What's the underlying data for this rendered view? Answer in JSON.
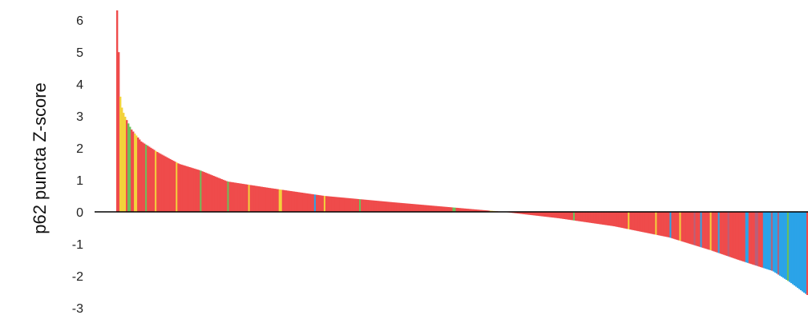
{
  "chart_data": {
    "type": "bar",
    "title": "",
    "xlabel": "",
    "ylabel": "p62 puncta  Z-score",
    "ylim": [
      -3.3,
      6.3
    ],
    "yticks": [
      "6",
      "5",
      "4",
      "3",
      "2",
      "1",
      "0",
      "-1",
      "-2",
      "-3"
    ],
    "x_axis": "unlabeled, bars sorted by descending Z-score",
    "bar_count": 430,
    "grid": false,
    "legend": "none",
    "colors": {
      "default": "#ef4b4b",
      "yellow": "#f3d23b",
      "green": "#6cc05a",
      "blue": "#2ba3e8",
      "mauve": "#b8607a",
      "axis": "#000000"
    },
    "profile": [
      {
        "rank": 0.0,
        "value": 6.3
      },
      {
        "rank": 0.0025,
        "value": 4.9
      },
      {
        "rank": 0.005,
        "value": 3.4
      },
      {
        "rank": 0.01,
        "value": 3.05
      },
      {
        "rank": 0.02,
        "value": 2.6
      },
      {
        "rank": 0.035,
        "value": 2.2
      },
      {
        "rank": 0.06,
        "value": 1.85
      },
      {
        "rank": 0.09,
        "value": 1.5
      },
      {
        "rank": 0.12,
        "value": 1.3
      },
      {
        "rank": 0.16,
        "value": 0.95
      },
      {
        "rank": 0.22,
        "value": 0.75
      },
      {
        "rank": 0.3,
        "value": 0.5
      },
      {
        "rank": 0.4,
        "value": 0.3
      },
      {
        "rank": 0.48,
        "value": 0.15
      },
      {
        "rank": 0.56,
        "value": 0.0
      },
      {
        "rank": 0.64,
        "value": -0.2
      },
      {
        "rank": 0.72,
        "value": -0.45
      },
      {
        "rank": 0.8,
        "value": -0.8
      },
      {
        "rank": 0.86,
        "value": -1.2
      },
      {
        "rank": 0.9,
        "value": -1.5
      },
      {
        "rank": 0.95,
        "value": -1.85
      },
      {
        "rank": 0.975,
        "value": -2.2
      },
      {
        "rank": 1.0,
        "value": -2.6
      }
    ],
    "color_runs": [
      {
        "start": 0.0,
        "end": 0.003,
        "color": "default"
      },
      {
        "start": 0.003,
        "end": 0.012,
        "color": "yellow"
      },
      {
        "start": 0.015,
        "end": 0.02,
        "color": "green"
      },
      {
        "start": 0.025,
        "end": 0.028,
        "color": "yellow"
      },
      {
        "start": 0.04,
        "end": 0.043,
        "color": "green"
      },
      {
        "start": 0.055,
        "end": 0.058,
        "color": "yellow"
      },
      {
        "start": 0.07,
        "end": 0.072,
        "color": "mauve"
      },
      {
        "start": 0.085,
        "end": 0.088,
        "color": "yellow"
      },
      {
        "start": 0.12,
        "end": 0.123,
        "color": "green"
      },
      {
        "start": 0.16,
        "end": 0.162,
        "color": "green"
      },
      {
        "start": 0.19,
        "end": 0.193,
        "color": "yellow"
      },
      {
        "start": 0.235,
        "end": 0.238,
        "color": "yellow"
      },
      {
        "start": 0.285,
        "end": 0.288,
        "color": "blue"
      },
      {
        "start": 0.3,
        "end": 0.303,
        "color": "yellow"
      },
      {
        "start": 0.35,
        "end": 0.352,
        "color": "green"
      },
      {
        "start": 0.485,
        "end": 0.49,
        "color": "green"
      },
      {
        "start": 0.54,
        "end": 0.548,
        "color": "yellow"
      },
      {
        "start": 0.66,
        "end": 0.663,
        "color": "green"
      },
      {
        "start": 0.74,
        "end": 0.742,
        "color": "yellow"
      },
      {
        "start": 0.76,
        "end": 0.762,
        "color": "mauve"
      },
      {
        "start": 0.78,
        "end": 0.782,
        "color": "yellow"
      },
      {
        "start": 0.8,
        "end": 0.802,
        "color": "blue"
      },
      {
        "start": 0.815,
        "end": 0.817,
        "color": "yellow"
      },
      {
        "start": 0.835,
        "end": 0.837,
        "color": "mauve"
      },
      {
        "start": 0.845,
        "end": 0.848,
        "color": "blue"
      },
      {
        "start": 0.86,
        "end": 0.862,
        "color": "yellow"
      },
      {
        "start": 0.87,
        "end": 0.874,
        "color": "blue"
      },
      {
        "start": 0.885,
        "end": 0.887,
        "color": "mauve"
      },
      {
        "start": 0.9,
        "end": 0.902,
        "color": "yellow"
      },
      {
        "start": 0.91,
        "end": 0.914,
        "color": "blue"
      },
      {
        "start": 0.925,
        "end": 0.928,
        "color": "mauve"
      },
      {
        "start": 0.935,
        "end": 1.0,
        "color": "blue"
      },
      {
        "start": 0.948,
        "end": 0.951,
        "color": "mauve"
      },
      {
        "start": 0.958,
        "end": 0.96,
        "color": "mauve"
      },
      {
        "start": 0.97,
        "end": 0.973,
        "color": "green"
      }
    ]
  }
}
